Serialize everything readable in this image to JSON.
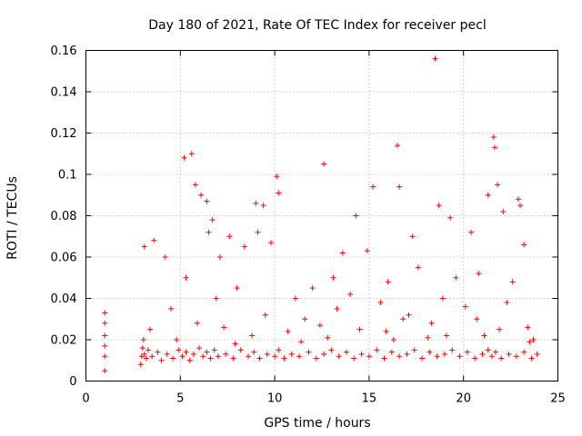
{
  "chart_data": {
    "type": "scatter",
    "title": "Day 180 of 2021, Rate Of TEC Index for receiver pecl",
    "xlabel": "GPS time / hours",
    "ylabel": "ROTI / TECUs",
    "xlim": [
      0,
      25
    ],
    "ylim": [
      0,
      0.16
    ],
    "xticks": [
      0,
      5,
      10,
      15,
      20,
      25
    ],
    "xtick_labels": [
      "0",
      "5",
      "10",
      "15",
      "20",
      "25"
    ],
    "yticks": [
      0,
      0.02,
      0.04,
      0.06,
      0.08,
      0.1,
      0.12,
      0.14,
      0.16
    ],
    "ytick_labels": [
      "0",
      "0.02",
      "0.04",
      "0.06",
      "0.08",
      "0.1",
      "0.12",
      "0.14",
      "0.16"
    ],
    "grid": true,
    "marker": "plus",
    "color": "#ff0000",
    "series": [
      {
        "x": [
          1.0,
          1.0,
          1.0,
          1.0,
          1.0,
          1.0,
          2.9,
          2.95,
          3.0,
          3.05,
          3.1,
          3.2,
          3.3,
          3.5,
          3.8,
          4.0,
          4.3,
          4.6,
          4.9,
          5.1,
          5.3,
          5.5,
          5.7,
          6.0,
          6.2,
          6.4,
          6.6,
          6.8,
          7.0,
          7.4,
          7.8,
          8.2,
          8.6,
          8.9,
          9.2,
          9.6,
          10.0,
          10.2,
          10.5,
          10.9,
          11.3,
          11.8,
          12.2,
          12.6,
          13.0,
          13.4,
          13.8,
          14.2,
          14.6,
          15.0,
          15.4,
          15.8,
          16.2,
          16.6,
          17.0,
          17.4,
          17.8,
          18.2,
          18.6,
          19.0,
          19.4,
          19.8,
          20.2,
          20.6,
          21.0,
          21.3,
          21.5,
          21.7,
          22.0,
          22.4,
          22.8,
          23.2,
          23.6,
          23.9,
          3.1,
          3.6,
          4.2,
          5.2,
          5.6,
          5.8,
          6.1,
          6.4,
          6.5,
          6.7,
          7.1,
          7.6,
          8.4,
          9.0,
          9.1,
          9.4,
          9.8,
          10.1,
          10.2,
          12.6,
          13.6,
          14.3,
          14.9,
          15.2,
          16.5,
          16.6,
          17.3,
          18.5,
          18.7,
          19.3,
          20.4,
          21.3,
          21.6,
          21.65,
          21.8,
          22.1,
          22.9,
          23.0,
          23.2,
          5.3,
          8.0,
          11.1,
          12.0,
          13.1,
          14.0,
          16.0,
          17.6,
          19.6,
          20.8,
          22.6,
          4.5,
          6.9,
          9.5,
          11.6,
          13.3,
          15.6,
          17.1,
          18.9,
          20.1,
          22.3,
          3.4,
          5.9,
          7.3,
          10.7,
          12.4,
          14.5,
          16.8,
          18.3,
          20.7,
          23.4,
          4.8,
          8.8,
          12.8,
          15.9,
          19.1,
          21.9,
          23.7,
          7.9,
          11.4,
          16.3,
          18.1,
          21.1,
          23.5
        ],
        "y": [
          0.005,
          0.012,
          0.017,
          0.022,
          0.028,
          0.033,
          0.008,
          0.012,
          0.016,
          0.02,
          0.013,
          0.011,
          0.015,
          0.012,
          0.014,
          0.01,
          0.013,
          0.011,
          0.015,
          0.012,
          0.014,
          0.01,
          0.013,
          0.016,
          0.012,
          0.014,
          0.011,
          0.015,
          0.012,
          0.013,
          0.011,
          0.015,
          0.012,
          0.014,
          0.011,
          0.013,
          0.012,
          0.015,
          0.011,
          0.013,
          0.012,
          0.014,
          0.011,
          0.013,
          0.015,
          0.012,
          0.014,
          0.011,
          0.013,
          0.012,
          0.015,
          0.011,
          0.014,
          0.012,
          0.013,
          0.015,
          0.011,
          0.014,
          0.012,
          0.013,
          0.015,
          0.012,
          0.014,
          0.011,
          0.013,
          0.015,
          0.012,
          0.014,
          0.011,
          0.013,
          0.012,
          0.014,
          0.011,
          0.013,
          0.065,
          0.068,
          0.06,
          0.108,
          0.11,
          0.095,
          0.09,
          0.087,
          0.072,
          0.078,
          0.06,
          0.07,
          0.065,
          0.086,
          0.072,
          0.085,
          0.067,
          0.099,
          0.091,
          0.105,
          0.062,
          0.08,
          0.063,
          0.094,
          0.114,
          0.094,
          0.07,
          0.156,
          0.085,
          0.079,
          0.072,
          0.09,
          0.118,
          0.113,
          0.095,
          0.082,
          0.088,
          0.085,
          0.066,
          0.05,
          0.045,
          0.04,
          0.045,
          0.05,
          0.042,
          0.048,
          0.055,
          0.05,
          0.052,
          0.048,
          0.035,
          0.04,
          0.032,
          0.03,
          0.035,
          0.038,
          0.032,
          0.04,
          0.036,
          0.038,
          0.025,
          0.028,
          0.026,
          0.024,
          0.027,
          0.025,
          0.03,
          0.028,
          0.03,
          0.026,
          0.02,
          0.022,
          0.021,
          0.024,
          0.022,
          0.025,
          0.02,
          0.018,
          0.019,
          0.02,
          0.021,
          0.022,
          0.019
        ]
      }
    ]
  }
}
